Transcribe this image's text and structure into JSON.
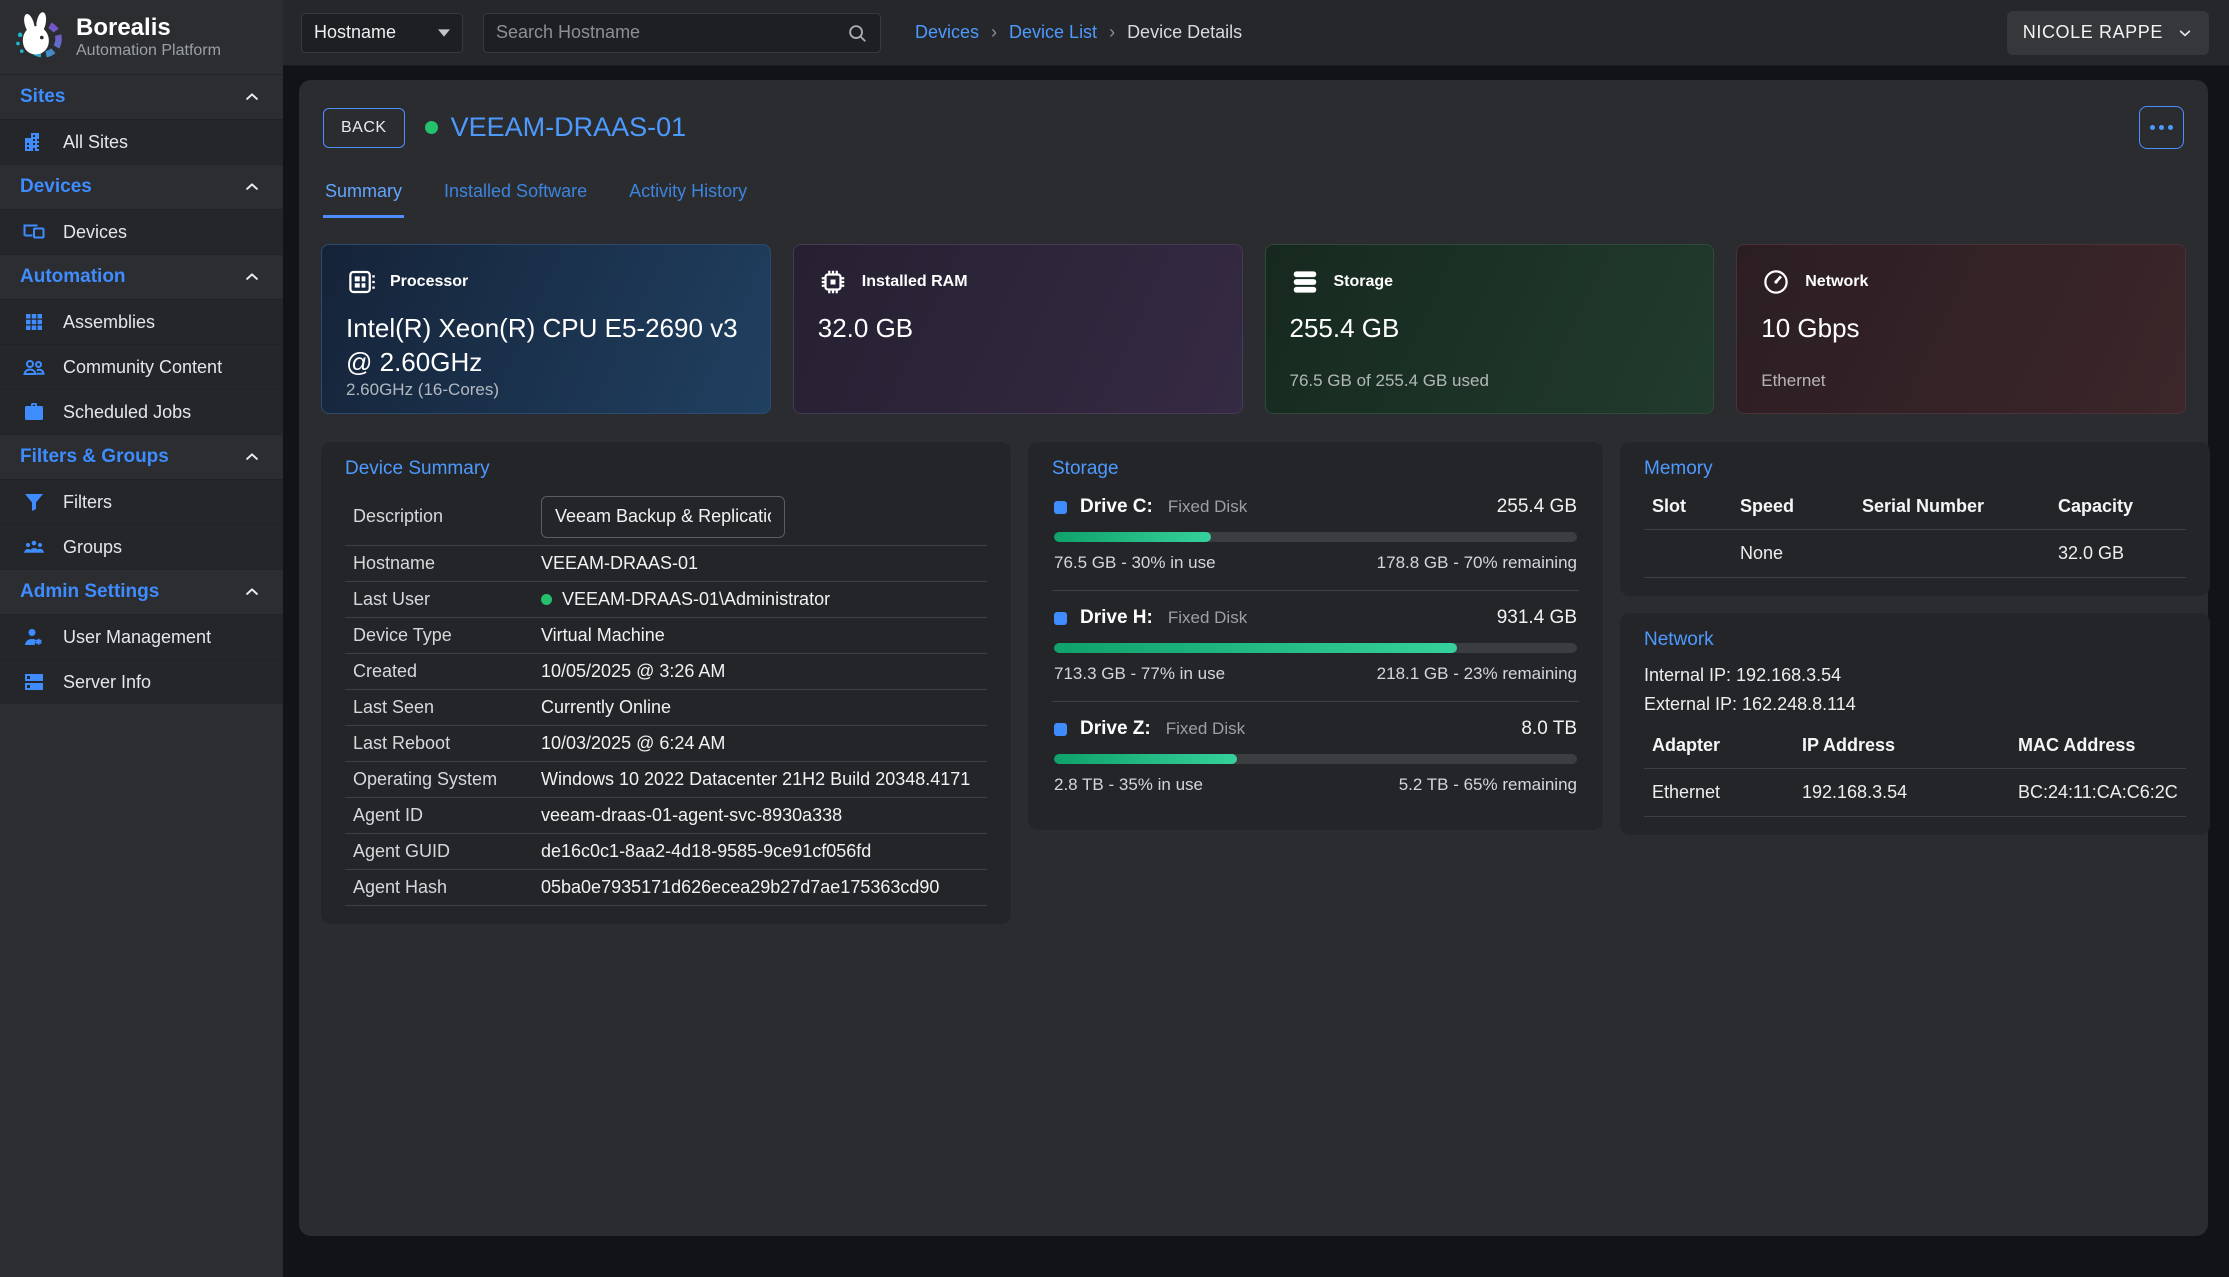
{
  "brand": {
    "name": "Borealis",
    "subtitle": "Automation Platform",
    "logo_icon": "rabbit-gear-logo"
  },
  "topbar": {
    "filter_selected": "Hostname",
    "search_placeholder": "Search Hostname",
    "search_icon": "search-icon",
    "breadcrumbs": {
      "link1": "Devices",
      "link2": "Device List",
      "current": "Device Details"
    },
    "user_name": "NICOLE RAPPE"
  },
  "sidebar": {
    "sections": [
      {
        "label": "Sites",
        "items": [
          {
            "label": "All Sites",
            "icon": "building-icon"
          }
        ]
      },
      {
        "label": "Devices",
        "items": [
          {
            "label": "Devices",
            "icon": "devices-icon"
          }
        ]
      },
      {
        "label": "Automation",
        "items": [
          {
            "label": "Assemblies",
            "icon": "grid-icon"
          },
          {
            "label": "Community Content",
            "icon": "people-icon"
          },
          {
            "label": "Scheduled Jobs",
            "icon": "briefcase-icon"
          }
        ]
      },
      {
        "label": "Filters & Groups",
        "items": [
          {
            "label": "Filters",
            "icon": "funnel-icon"
          },
          {
            "label": "Groups",
            "icon": "groups-icon"
          }
        ]
      },
      {
        "label": "Admin Settings",
        "items": [
          {
            "label": "User Management",
            "icon": "user-gear-icon"
          },
          {
            "label": "Server Info",
            "icon": "server-icon"
          }
        ]
      }
    ]
  },
  "device": {
    "back_label": "BACK",
    "name": "VEEAM-DRAAS-01",
    "status": "online",
    "status_color": "#23c16b",
    "accent_color": "#4d8dff",
    "tabs": [
      {
        "label": "Summary",
        "active": true
      },
      {
        "label": "Installed Software",
        "active": false
      },
      {
        "label": "Activity History",
        "active": false
      }
    ]
  },
  "stat_cards": [
    {
      "icon": "cpu-icon",
      "label": "Processor",
      "value": "Intel(R) Xeon(R) CPU E5-2690 v3 @ 2.60GHz",
      "subtitle": "2.60GHz (16-Cores)",
      "accent": "blue"
    },
    {
      "icon": "ram-chip-icon",
      "label": "Installed RAM",
      "value": "32.0 GB",
      "subtitle": "",
      "accent": "purple"
    },
    {
      "icon": "storage-stack-icon",
      "label": "Storage",
      "value": "255.4 GB",
      "subtitle": "76.5 GB of 255.4 GB used",
      "accent": "green"
    },
    {
      "icon": "gauge-icon",
      "label": "Network",
      "value": "10 Gbps",
      "subtitle": "Ethernet",
      "accent": "red"
    }
  ],
  "device_summary": {
    "title": "Device Summary",
    "rows": [
      {
        "label": "Description",
        "value": "Veeam Backup & Replication"
      },
      {
        "label": "Hostname",
        "value": "VEEAM-DRAAS-01"
      },
      {
        "label": "Last User",
        "value": "VEEAM-DRAAS-01\\Administrator"
      },
      {
        "label": "Device Type",
        "value": "Virtual Machine"
      },
      {
        "label": "Created",
        "value": "10/05/2025 @ 3:26 AM"
      },
      {
        "label": "Last Seen",
        "value": "Currently Online"
      },
      {
        "label": "Last Reboot",
        "value": "10/03/2025 @ 6:24 AM"
      },
      {
        "label": "Operating System",
        "value": "Windows 10 2022 Datacenter 21H2 Build 20348.4171"
      },
      {
        "label": "Agent ID",
        "value": "veeam-draas-01-agent-svc-8930a338"
      },
      {
        "label": "Agent GUID",
        "value": "de16c0c1-8aa2-4d18-9585-9ce91cf056fd"
      },
      {
        "label": "Agent Hash",
        "value": "05ba0e7935171d626ecea29b27d7ae175363cd90"
      }
    ]
  },
  "storage_panel": {
    "title": "Storage",
    "bar_color_start": "#0fa26b",
    "bar_color_end": "#36d19c",
    "drives": [
      {
        "name": "Drive C:",
        "type": "Fixed Disk",
        "size": "255.4 GB",
        "percent": 30,
        "used": "76.5 GB - 30% in use",
        "remaining": "178.8 GB - 70% remaining"
      },
      {
        "name": "Drive H:",
        "type": "Fixed Disk",
        "size": "931.4 GB",
        "percent": 77,
        "used": "713.3 GB - 77% in use",
        "remaining": "218.1 GB - 23% remaining"
      },
      {
        "name": "Drive Z:",
        "type": "Fixed Disk",
        "size": "8.0 TB",
        "percent": 35,
        "used": "2.8 TB - 35% in use",
        "remaining": "5.2 TB - 65% remaining"
      }
    ]
  },
  "memory_panel": {
    "title": "Memory",
    "headers": [
      "Slot",
      "Speed",
      "Serial Number",
      "Capacity"
    ],
    "rows": [
      {
        "slot": "",
        "speed": "None",
        "serial": "",
        "capacity": "32.0 GB"
      }
    ]
  },
  "network_panel": {
    "title": "Network",
    "internal_ip": "Internal IP: 192.168.3.54",
    "external_ip": "External IP: 162.248.8.114",
    "headers": [
      "Adapter",
      "IP Address",
      "MAC Address"
    ],
    "rows": [
      {
        "adapter": "Ethernet",
        "ip": "192.168.3.54",
        "mac": "BC:24:11:CA:C6:2C"
      }
    ]
  }
}
